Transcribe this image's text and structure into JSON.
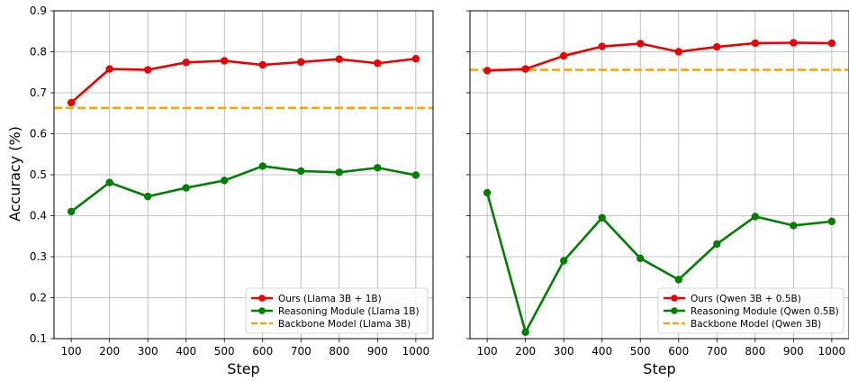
{
  "ylabel": "Accuracy (%)",
  "chart_data": [
    {
      "type": "line",
      "xlabel": "Step",
      "ylabel": "Accuracy (%)",
      "x": [
        100,
        200,
        300,
        400,
        500,
        600,
        700,
        800,
        900,
        1000
      ],
      "xlim": [
        55,
        1045
      ],
      "ylim": [
        0.1,
        0.9
      ],
      "yticks": [
        "0.1",
        "0.2",
        "0.3",
        "0.4",
        "0.5",
        "0.6",
        "0.7",
        "0.8",
        "0.9"
      ],
      "grid": true,
      "legend_position": "bottom-right",
      "series": [
        {
          "name": "Ours (Llama 3B + 1B)",
          "color": "#ee0000",
          "values": [
            0.676,
            0.758,
            0.756,
            0.774,
            0.778,
            0.768,
            0.775,
            0.782,
            0.772,
            0.783
          ]
        },
        {
          "name": "Reasoning Module (Llama 1B)",
          "color": "#008000",
          "values": [
            0.41,
            0.481,
            0.447,
            0.468,
            0.486,
            0.521,
            0.509,
            0.506,
            0.517,
            0.499
          ]
        }
      ],
      "baseline": {
        "name": "Backbone Model (Llama 3B)",
        "color": "#ffa500",
        "value": 0.663
      }
    },
    {
      "type": "line",
      "xlabel": "Step",
      "x": [
        100,
        200,
        300,
        400,
        500,
        600,
        700,
        800,
        900,
        1000
      ],
      "xlim": [
        55,
        1045
      ],
      "ylim": [
        0.1,
        0.9
      ],
      "grid": true,
      "legend_position": "bottom-right",
      "series": [
        {
          "name": "Ours (Qwen 3B + 0.5B)",
          "color": "#ee0000",
          "values": [
            0.754,
            0.758,
            0.79,
            0.813,
            0.82,
            0.8,
            0.812,
            0.821,
            0.822,
            0.821
          ]
        },
        {
          "name": "Reasoning Module (Qwen 0.5B)",
          "color": "#008000",
          "values": [
            0.456,
            0.116,
            0.29,
            0.395,
            0.296,
            0.244,
            0.331,
            0.398,
            0.376,
            0.386
          ]
        }
      ],
      "baseline": {
        "name": "Backbone Model (Qwen 3B)",
        "color": "#ffa500",
        "value": 0.756
      }
    }
  ]
}
